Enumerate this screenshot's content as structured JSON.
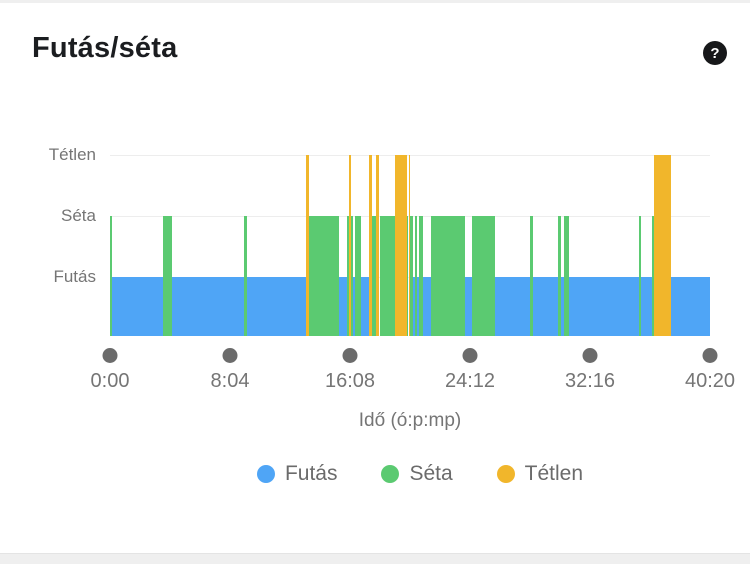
{
  "header": {
    "title": "Futás/séta",
    "help_label": "?"
  },
  "colors": {
    "run": "#4fa5f6",
    "walk": "#5bca71",
    "idle": "#f1b62b",
    "axis_dot": "#6b6b6b",
    "grid": "#ededed",
    "muted_text": "#757575",
    "title_text": "#1b1d20",
    "strip": "#efefef"
  },
  "chart_data": {
    "type": "state-timeline",
    "title": "Futás/séta",
    "xlabel": "Idő (ó:p:mp)",
    "x_ticks": [
      "0:00",
      "8:04",
      "16:08",
      "24:12",
      "32:16",
      "40:20"
    ],
    "x_tick_seconds": [
      0,
      484,
      968,
      1452,
      1936,
      2420
    ],
    "x_range_s": [
      0,
      2420
    ],
    "grid": "on",
    "legend_position": "bottom",
    "y_axis_labels": [
      {
        "label": "Tétlen",
        "level": 3
      },
      {
        "label": "Séta",
        "level": 2
      },
      {
        "label": "Futás",
        "level": 1
      }
    ],
    "states": {
      "run": {
        "label": "Futás",
        "color": "#4fa5f6",
        "level": 1
      },
      "walk": {
        "label": "Séta",
        "color": "#5bca71",
        "level": 2
      },
      "idle": {
        "label": "Tétlen",
        "color": "#f1b62b",
        "level": 3
      }
    },
    "legend": [
      "run",
      "walk",
      "idle"
    ],
    "segments_s": [
      [
        0,
        8,
        "walk"
      ],
      [
        8,
        213,
        "run"
      ],
      [
        213,
        249,
        "walk"
      ],
      [
        249,
        542,
        "run"
      ],
      [
        542,
        554,
        "walk"
      ],
      [
        554,
        791,
        "run"
      ],
      [
        791,
        803,
        "idle"
      ],
      [
        803,
        923,
        "walk"
      ],
      [
        923,
        955,
        "run"
      ],
      [
        955,
        963,
        "walk"
      ],
      [
        963,
        971,
        "idle"
      ],
      [
        971,
        979,
        "walk"
      ],
      [
        979,
        987,
        "run"
      ],
      [
        987,
        1011,
        "walk"
      ],
      [
        1011,
        1043,
        "run"
      ],
      [
        1043,
        1055,
        "idle"
      ],
      [
        1055,
        1071,
        "walk"
      ],
      [
        1071,
        1087,
        "idle"
      ],
      [
        1087,
        1148,
        "walk"
      ],
      [
        1148,
        1196,
        "idle"
      ],
      [
        1196,
        1204,
        "walk"
      ],
      [
        1204,
        1212,
        "idle"
      ],
      [
        1212,
        1224,
        "walk"
      ],
      [
        1224,
        1232,
        "run"
      ],
      [
        1232,
        1240,
        "walk"
      ],
      [
        1240,
        1248,
        "run"
      ],
      [
        1248,
        1264,
        "walk"
      ],
      [
        1264,
        1296,
        "run"
      ],
      [
        1296,
        1433,
        "walk"
      ],
      [
        1433,
        1461,
        "run"
      ],
      [
        1461,
        1553,
        "walk"
      ],
      [
        1553,
        1694,
        "run"
      ],
      [
        1694,
        1706,
        "walk"
      ],
      [
        1706,
        1806,
        "run"
      ],
      [
        1806,
        1818,
        "walk"
      ],
      [
        1818,
        1830,
        "run"
      ],
      [
        1830,
        1850,
        "walk"
      ],
      [
        1850,
        2135,
        "run"
      ],
      [
        2135,
        2143,
        "walk"
      ],
      [
        2143,
        2187,
        "run"
      ],
      [
        2187,
        2195,
        "walk"
      ],
      [
        2195,
        2263,
        "idle"
      ],
      [
        2263,
        2420,
        "run"
      ]
    ]
  }
}
